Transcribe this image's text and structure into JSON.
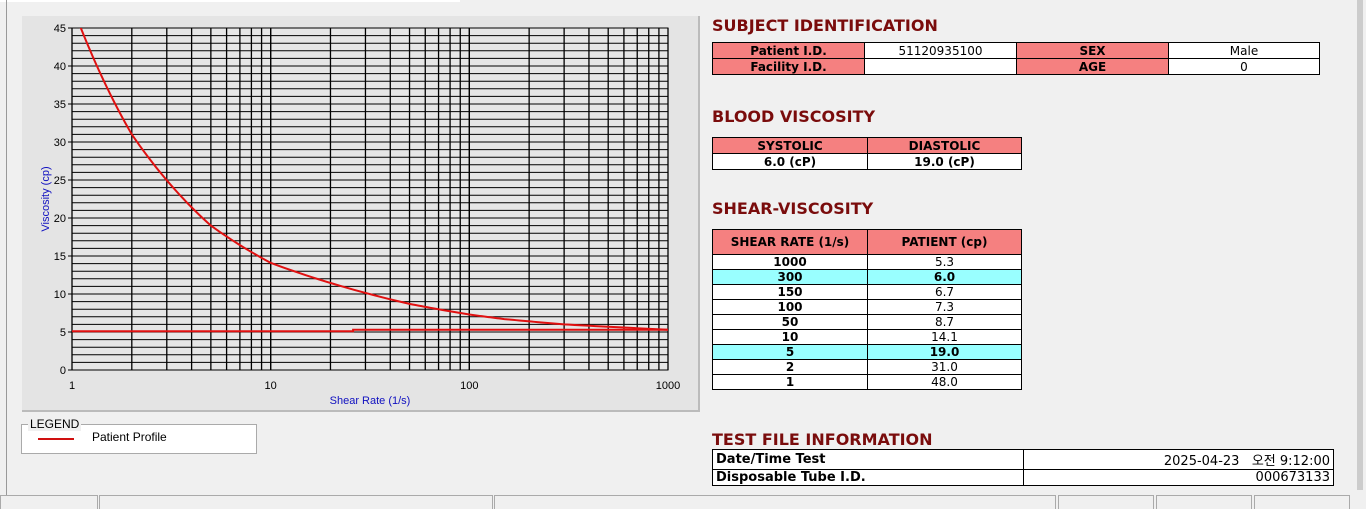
{
  "chart_data": {
    "type": "line",
    "xlabel": "Shear Rate (1/s)",
    "ylabel": "Viscosity (cp)",
    "xscale": "log",
    "xlim": [
      1,
      1000
    ],
    "ylim": [
      0,
      45
    ],
    "xticks": [
      "1",
      "10",
      "100",
      "1000"
    ],
    "yticks": [
      "0",
      "5",
      "10",
      "15",
      "20",
      "25",
      "30",
      "35",
      "40",
      "45"
    ],
    "grid": true,
    "series": [
      {
        "name": "Patient Profile",
        "color": "#e01010",
        "x": [
          1,
          2,
          5,
          10,
          50,
          100,
          150,
          300,
          1000
        ],
        "y": [
          48.0,
          31.0,
          19.0,
          14.1,
          8.7,
          7.3,
          6.7,
          6.0,
          5.3
        ]
      },
      {
        "color": "#e01010",
        "x": [
          1,
          26,
          26,
          1000
        ],
        "y": [
          5.1,
          5.1,
          5.3,
          5.3
        ]
      }
    ]
  },
  "legend": {
    "title": "LEGEND",
    "items": [
      "Patient Profile"
    ]
  },
  "subject": {
    "title": "SUBJECT IDENTIFICATION",
    "patient_id_label": "Patient I.D.",
    "patient_id": "51120935100",
    "sex_label": "SEX",
    "sex": "Male",
    "facility_label": "Facility I.D.",
    "facility": "",
    "age_label": "AGE",
    "age": "0"
  },
  "blood": {
    "title": "BLOOD VISCOSITY",
    "systolic_label": "SYSTOLIC",
    "diastolic_label": "DIASTOLIC",
    "systolic": "6.0 (cP)",
    "diastolic": "19.0 (cP)"
  },
  "shear": {
    "title": "SHEAR-VISCOSITY",
    "col1": "SHEAR RATE (1/s)",
    "col2": "PATIENT (cp)",
    "rows": [
      [
        "1000",
        "5.3"
      ],
      [
        "300",
        "6.0"
      ],
      [
        "150",
        "6.7"
      ],
      [
        "100",
        "7.3"
      ],
      [
        "50",
        "8.7"
      ],
      [
        "10",
        "14.1"
      ],
      [
        "5",
        "19.0"
      ],
      [
        "2",
        "31.0"
      ],
      [
        "1",
        "48.0"
      ]
    ],
    "highlight": [
      1,
      6
    ],
    "highlight_color": "#99ffff"
  },
  "testfile": {
    "title": "TEST FILE INFORMATION",
    "date_label": "Date/Time Test",
    "date": "2025-04-23   오전 9:12:00",
    "tube_label": "Disposable Tube I.D.",
    "tube": "000673133"
  }
}
